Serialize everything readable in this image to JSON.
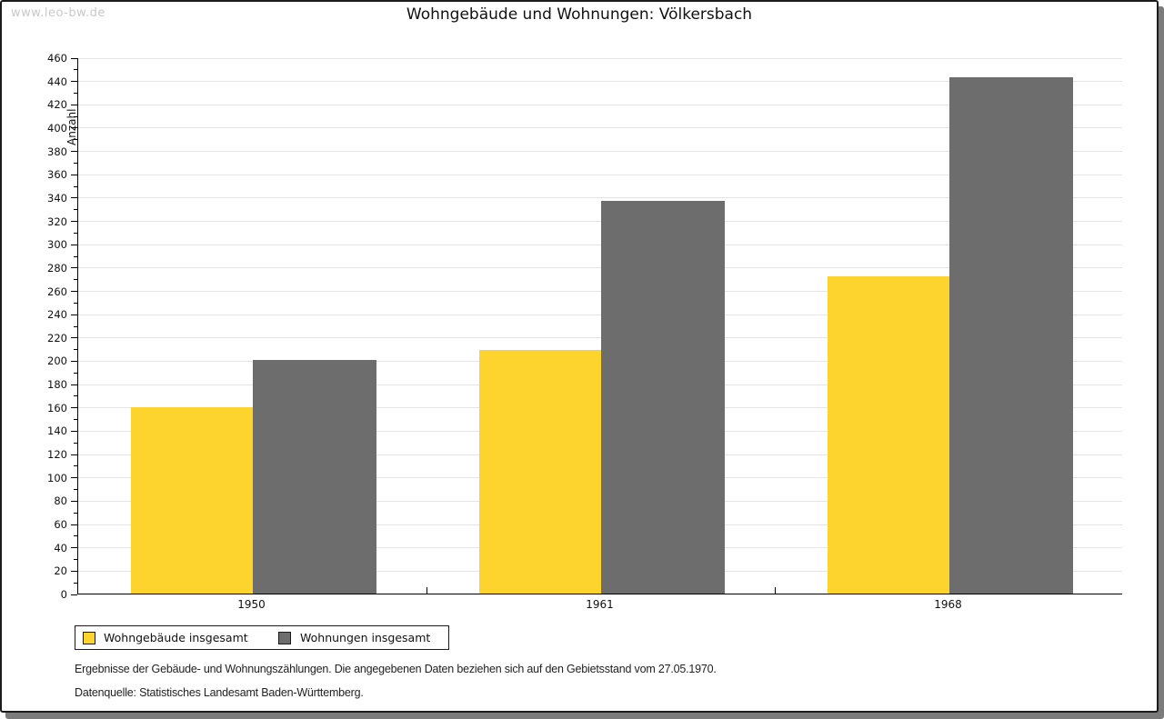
{
  "watermark": "www.leo-bw.de",
  "title": "Wohngebäude und Wohnungen: Völkersbach",
  "chart_data": {
    "type": "bar",
    "title": "Wohngebäude und Wohnungen: Völkersbach",
    "categories": [
      "1950",
      "1961",
      "1968"
    ],
    "series": [
      {
        "name": "Wohngebäude insgesamt",
        "color": "#fcd42d",
        "values": [
          160,
          209,
          272
        ]
      },
      {
        "name": "Wohnungen insgesamt",
        "color": "#6d6d6d",
        "values": [
          200,
          337,
          443
        ]
      }
    ],
    "xlabel": "",
    "ylabel": "Anzahl",
    "ylim": [
      0,
      460
    ],
    "ytick_step": 20,
    "minor_tick_step": 10,
    "grid": true,
    "legend_position": "bottom-left"
  },
  "footer": {
    "line1": "Ergebnisse der Gebäude- und Wohnungszählungen. Die angegebenen Daten beziehen sich auf den Gebietsstand vom 27.05.1970.",
    "line2": "Datenquelle: Statistisches Landesamt Baden-Württemberg."
  },
  "colors": {
    "bar_yellow": "#fcd42d",
    "bar_gray": "#6d6d6d",
    "gridline": "#e4e4e4",
    "axis": "#000000",
    "watermark": "#c9c9c9",
    "panel_border": "#1b1b1b",
    "shadow": "#7b7b7b"
  }
}
